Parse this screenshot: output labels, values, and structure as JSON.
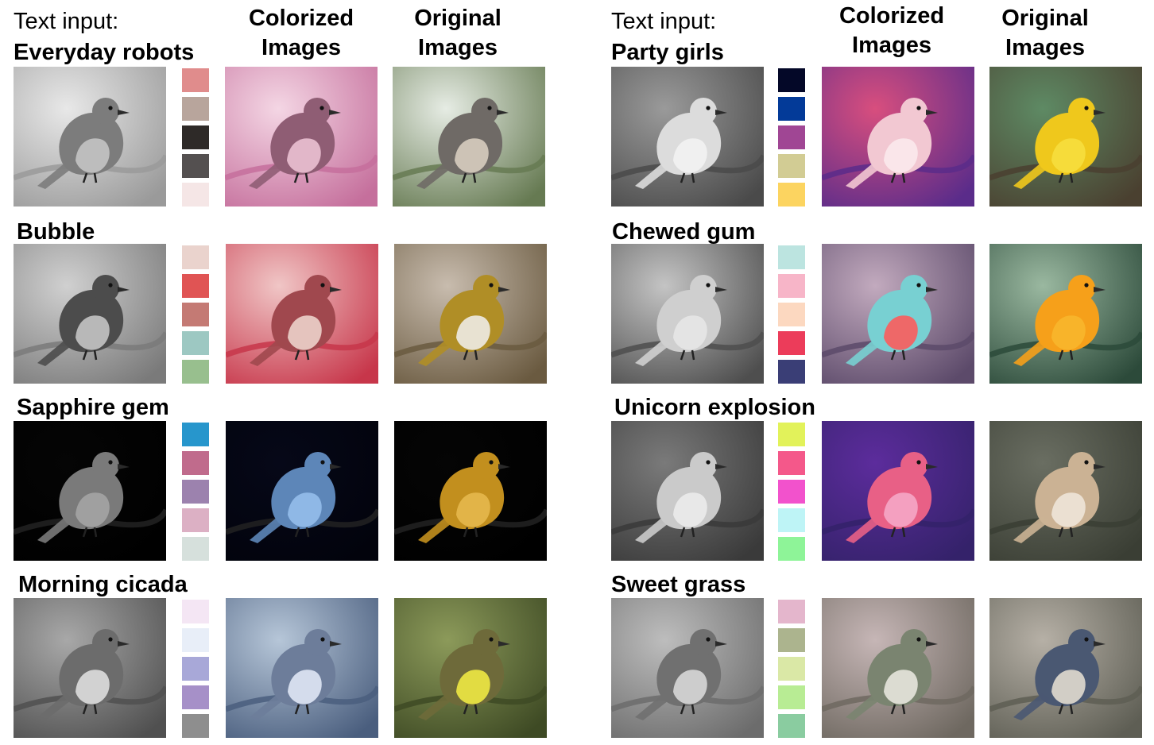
{
  "headers": {
    "text_input_label": "Text input:",
    "colorized_line1": "Colorized",
    "colorized_line2": "Images",
    "original_line1": "Original",
    "original_line2": "Images"
  },
  "rows": [
    {
      "prompt": "Everyday robots",
      "palette": [
        "#e08c8c",
        "#b8a59c",
        "#2e2a28",
        "#545050",
        "#f5e6e6"
      ],
      "gray": {
        "bg1": "#e8e8e8",
        "bg2": "#9a9a9a",
        "body": "#7c7c7c",
        "belly": "#bdbdbd"
      },
      "colorized": {
        "bg1": "#f4d6e4",
        "bg2": "#c56f9c",
        "body": "#8f5d74",
        "belly": "#e2b7c9"
      },
      "original": {
        "bg1": "#e6ece4",
        "bg2": "#667a52",
        "body": "#6f6a66",
        "belly": "#cdc3b6"
      }
    },
    {
      "prompt": "Bubble",
      "palette": [
        "#ead3cd",
        "#e05454",
        "#c47a74",
        "#9dc8c2",
        "#98bf8e"
      ],
      "gray": {
        "bg1": "#d0d0d0",
        "bg2": "#7a7a7a",
        "body": "#4c4c4c",
        "belly": "#b8b8b8"
      },
      "colorized": {
        "bg1": "#f0c6c6",
        "bg2": "#c7364a",
        "body": "#a0484e",
        "belly": "#e5c4be"
      },
      "original": {
        "bg1": "#c8bcae",
        "bg2": "#6a5a40",
        "body": "#b08e26",
        "belly": "#e8e2d2"
      }
    },
    {
      "prompt": "Sapphire gem",
      "palette": [
        "#2796cc",
        "#c06b8c",
        "#9c82ae",
        "#dcb0c4",
        "#d6e0dc"
      ],
      "gray": {
        "bg1": "#050505",
        "bg2": "#000000",
        "body": "#7a7a7a",
        "belly": "#a0a0a0"
      },
      "colorized": {
        "bg1": "#060818",
        "bg2": "#02030c",
        "body": "#5d86b8",
        "belly": "#8fb8e6"
      },
      "original": {
        "bg1": "#050505",
        "bg2": "#000000",
        "body": "#c28f1e",
        "belly": "#e2b448"
      }
    },
    {
      "prompt": "Morning cicada",
      "palette": [
        "#f4e6f4",
        "#e8eef8",
        "#a8a8d8",
        "#a690c8",
        "#8e8e8e"
      ],
      "gray": {
        "bg1": "#a8a8a8",
        "bg2": "#505050",
        "body": "#6c6c6c",
        "belly": "#d2d2d2"
      },
      "colorized": {
        "bg1": "#b6c6d8",
        "bg2": "#4a5e7e",
        "body": "#6d7d9a",
        "belly": "#d4dcec"
      },
      "original": {
        "bg1": "#8c9a5a",
        "bg2": "#3e4a24",
        "body": "#6e6a3a",
        "belly": "#e2dc42"
      }
    },
    {
      "prompt": "Party girls",
      "palette": [
        "#040828",
        "#033a98",
        "#a04694",
        "#d2cc94",
        "#fcd460"
      ],
      "gray": {
        "bg1": "#9a9a9a",
        "bg2": "#4a4a4a",
        "body": "#dcdcdc",
        "belly": "#f0f0f0"
      },
      "colorized": {
        "bg1": "#d84e7e",
        "bg2": "#5a2c8a",
        "body": "#f2c8d2",
        "belly": "#fae6ea"
      },
      "original": {
        "bg1": "#5e8a64",
        "bg2": "#4a4030",
        "body": "#efc81c",
        "belly": "#f6dc3a"
      }
    },
    {
      "prompt": "Chewed gum",
      "palette": [
        "#bce4e0",
        "#f7b5c8",
        "#fcd8c0",
        "#ec3c5a",
        "#3a3e76"
      ],
      "gray": {
        "bg1": "#c4c4c4",
        "bg2": "#4e4e4e",
        "body": "#cfcfcf",
        "belly": "#e4e4e4"
      },
      "colorized": {
        "bg1": "#c2aabe",
        "bg2": "#5c4a6a",
        "body": "#78d0d2",
        "belly": "#ee6868"
      },
      "original": {
        "bg1": "#9ab8a0",
        "bg2": "#2c4a3a",
        "body": "#f6a01a",
        "belly": "#f8b42a"
      }
    },
    {
      "prompt": "Unicorn explosion",
      "palette": [
        "#e2f25a",
        "#f4588a",
        "#f252cc",
        "#bef4f6",
        "#8ef498"
      ],
      "gray": {
        "bg1": "#7a7a7a",
        "bg2": "#3a3a3a",
        "body": "#cacaca",
        "belly": "#e8e8e8"
      },
      "colorized": {
        "bg1": "#5c2c9c",
        "bg2": "#34226a",
        "body": "#e86086",
        "belly": "#f4a0c0"
      },
      "original": {
        "bg1": "#6a6e62",
        "bg2": "#3a3e34",
        "body": "#cbb294",
        "belly": "#ebe0d2"
      }
    },
    {
      "prompt": "Sweet grass",
      "palette": [
        "#e4b6cc",
        "#acb48e",
        "#dae8a6",
        "#b8ec94",
        "#8acca0"
      ],
      "gray": {
        "bg1": "#bdbdbd",
        "bg2": "#6c6c6c",
        "body": "#707070",
        "belly": "#cdcdcd"
      },
      "colorized": {
        "bg1": "#c6b6b6",
        "bg2": "#6e6860",
        "body": "#7a8470",
        "belly": "#dcdcd2"
      },
      "original": {
        "bg1": "#b6b0a6",
        "bg2": "#5e5e54",
        "body": "#4a5872",
        "belly": "#d2cec6"
      }
    }
  ]
}
